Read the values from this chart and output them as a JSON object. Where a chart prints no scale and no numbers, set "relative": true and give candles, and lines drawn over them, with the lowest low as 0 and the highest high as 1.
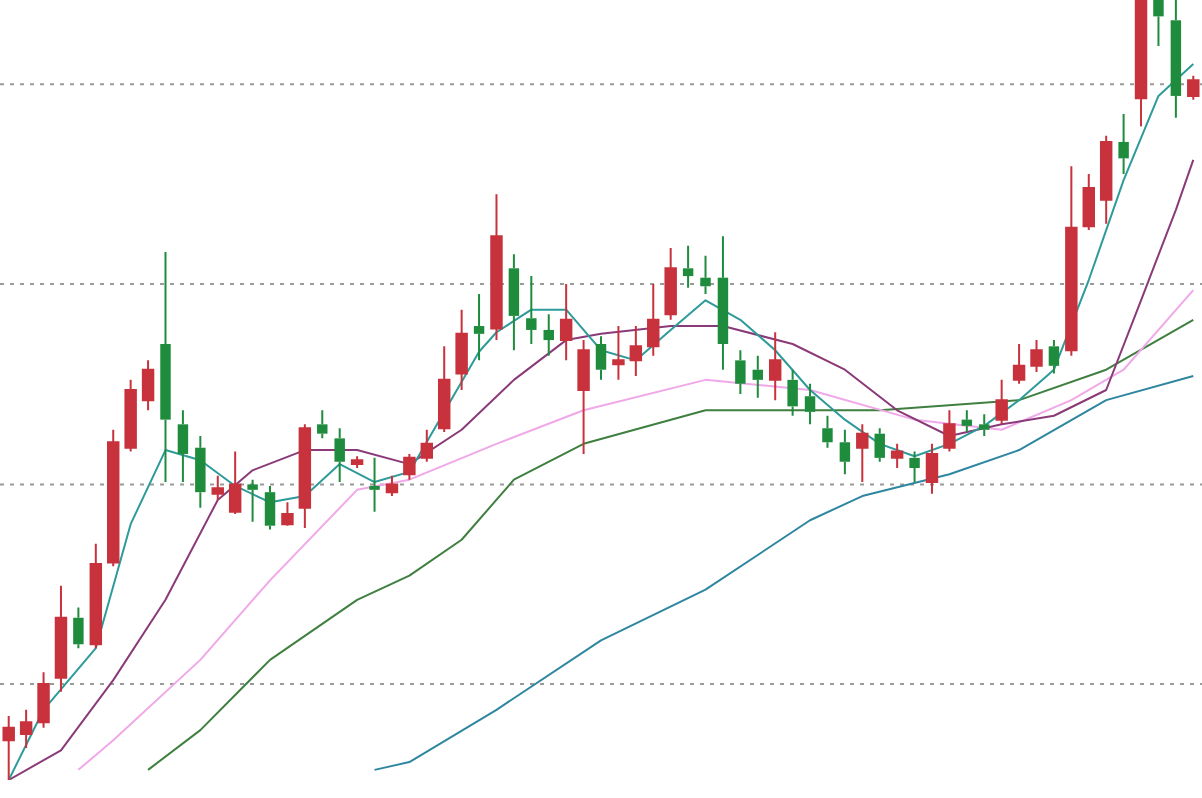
{
  "chart_data": {
    "type": "candlestick",
    "relative": true,
    "ref_lines": [
      {
        "axis": "y",
        "value": 0.123,
        "color": "#9a9a9a",
        "line_style": "dotted"
      },
      {
        "axis": "y",
        "value": 0.379,
        "color": "#9a9a9a",
        "line_style": "dotted"
      },
      {
        "axis": "y",
        "value": 0.636,
        "color": "#9a9a9a",
        "line_style": "dotted"
      },
      {
        "axis": "y",
        "value": 0.892,
        "color": "#9a9a9a",
        "line_style": "dotted"
      }
    ],
    "categories": [
      null,
      null,
      null,
      null,
      null,
      null,
      null,
      null,
      null,
      null,
      null,
      null,
      null,
      null,
      null,
      null,
      null,
      null,
      null,
      null,
      null,
      null,
      null,
      null,
      null,
      null,
      null,
      null,
      null,
      null,
      null,
      null,
      null,
      null,
      null,
      null,
      null,
      null,
      null,
      null,
      null,
      null,
      null,
      null,
      null,
      null,
      null,
      null,
      null,
      null,
      null,
      null,
      null,
      null,
      null,
      null,
      null,
      null,
      null,
      null,
      null,
      null,
      null,
      null,
      null,
      null,
      null,
      null,
      null
    ],
    "ohlc": [
      [
        0.051,
        0.082,
        0,
        0.067
      ],
      [
        0.059,
        0.09,
        0.041,
        0.074
      ],
      [
        0.074,
        0.138,
        0.067,
        0.123
      ],
      [
        0.131,
        0.249,
        0.113,
        0.208
      ],
      [
        0.208,
        0.221,
        0.169,
        0.174
      ],
      [
        0.174,
        0.303,
        0.169,
        0.277
      ],
      [
        0.279,
        0.449,
        0.274,
        0.433
      ],
      [
        0.426,
        0.513,
        0.421,
        0.5
      ],
      [
        0.487,
        0.538,
        0.474,
        0.526
      ],
      [
        0.559,
        0.677,
        0.382,
        0.462
      ],
      [
        0.456,
        0.474,
        0.382,
        0.418
      ],
      [
        0.426,
        0.441,
        0.349,
        0.369
      ],
      [
        0.367,
        0.39,
        0.359,
        0.374
      ],
      [
        0.344,
        0.421,
        0.341,
        0.379
      ],
      [
        0.379,
        0.385,
        0.331,
        0.372
      ],
      [
        0.369,
        0.377,
        0.321,
        0.326
      ],
      [
        0.328,
        0.356,
        0.326,
        0.341
      ],
      [
        0.349,
        0.456,
        0.323,
        0.451
      ],
      [
        0.456,
        0.474,
        0.438,
        0.444
      ],
      [
        0.438,
        0.451,
        0.382,
        0.408
      ],
      [
        0.405,
        0.415,
        0.4,
        0.41
      ],
      [
        0.377,
        0.413,
        0.344,
        0.372
      ],
      [
        0.369,
        0.39,
        0.364,
        0.379
      ],
      [
        0.392,
        0.418,
        0.385,
        0.413
      ],
      [
        0.413,
        0.449,
        0.408,
        0.431
      ],
      [
        0.451,
        0.556,
        0.446,
        0.513
      ],
      [
        0.521,
        0.603,
        0.5,
        0.572
      ],
      [
        0.582,
        0.623,
        0.538,
        0.572
      ],
      [
        0.579,
        0.751,
        0.564,
        0.697
      ],
      [
        0.656,
        0.674,
        0.551,
        0.595
      ],
      [
        0.592,
        0.646,
        0.559,
        0.577
      ],
      [
        0.577,
        0.597,
        0.544,
        0.564
      ],
      [
        0.564,
        0.636,
        0.538,
        0.59
      ],
      [
        0.5,
        0.564,
        0.418,
        0.551
      ],
      [
        0.559,
        0.569,
        0.513,
        0.526
      ],
      [
        0.533,
        0.582,
        0.513,
        0.538
      ],
      [
        0.538,
        0.582,
        0.518,
        0.556
      ],
      [
        0.556,
        0.636,
        0.544,
        0.59
      ],
      [
        0.597,
        0.682,
        0.59,
        0.656
      ],
      [
        0.656,
        0.685,
        0.631,
        0.646
      ],
      [
        0.644,
        0.672,
        0.623,
        0.633
      ],
      [
        0.644,
        0.697,
        0.526,
        0.559
      ],
      [
        0.538,
        0.551,
        0.495,
        0.508
      ],
      [
        0.526,
        0.544,
        0.49,
        0.513
      ],
      [
        0.513,
        0.574,
        0.487,
        0.538
      ],
      [
        0.513,
        0.526,
        0.467,
        0.479
      ],
      [
        0.492,
        0.508,
        0.456,
        0.472
      ],
      [
        0.451,
        0.467,
        0.426,
        0.433
      ],
      [
        0.433,
        0.449,
        0.392,
        0.408
      ],
      [
        0.426,
        0.456,
        0.382,
        0.444
      ],
      [
        0.444,
        0.451,
        0.408,
        0.413
      ],
      [
        0.413,
        0.431,
        0.4,
        0.421
      ],
      [
        0.413,
        0.421,
        0.382,
        0.4
      ],
      [
        0.382,
        0.431,
        0.367,
        0.418
      ],
      [
        0.426,
        0.474,
        0.421,
        0.456
      ],
      [
        0.462,
        0.474,
        0.446,
        0.454
      ],
      [
        0.456,
        0.469,
        0.441,
        0.449
      ],
      [
        0.462,
        0.513,
        0.456,
        0.487
      ],
      [
        0.513,
        0.559,
        0.508,
        0.531
      ],
      [
        0.531,
        0.564,
        0.523,
        0.551
      ],
      [
        0.556,
        0.564,
        0.521,
        0.531
      ],
      [
        0.551,
        0.787,
        0.544,
        0.708
      ],
      [
        0.71,
        0.777,
        0.705,
        0.759
      ],
      [
        0.744,
        0.826,
        0.713,
        0.818
      ],
      [
        0.818,
        0.854,
        0.777,
        0.797
      ],
      [
        0.874,
        1,
        0.838,
        1
      ],
      [
        1,
        1,
        0.941,
        0.979
      ],
      [
        0.974,
        1,
        0.849,
        0.877
      ],
      [
        0.877,
        0.903,
        0.872,
        0.897
      ]
    ],
    "colors": [
      "#c8323c",
      "#c8323c",
      "#c8323c",
      "#c8323c",
      "#1e8c3c",
      "#c8323c",
      "#c8323c",
      "#c8323c",
      "#c8323c",
      "#1e8c3c",
      "#1e8c3c",
      "#1e8c3c",
      "#c8323c",
      "#c8323c",
      "#1e8c3c",
      "#1e8c3c",
      "#c8323c",
      "#c8323c",
      "#1e8c3c",
      "#1e8c3c",
      "#c8323c",
      "#1e8c3c",
      "#c8323c",
      "#c8323c",
      "#c8323c",
      "#c8323c",
      "#c8323c",
      "#1e8c3c",
      "#c8323c",
      "#1e8c3c",
      "#1e8c3c",
      "#1e8c3c",
      "#c8323c",
      "#c8323c",
      "#1e8c3c",
      "#c8323c",
      "#c8323c",
      "#c8323c",
      "#c8323c",
      "#1e8c3c",
      "#1e8c3c",
      "#1e8c3c",
      "#1e8c3c",
      "#1e8c3c",
      "#c8323c",
      "#1e8c3c",
      "#1e8c3c",
      "#1e8c3c",
      "#1e8c3c",
      "#c8323c",
      "#1e8c3c",
      "#c8323c",
      "#1e8c3c",
      "#c8323c",
      "#c8323c",
      "#1e8c3c",
      "#1e8c3c",
      "#c8323c",
      "#c8323c",
      "#c8323c",
      "#1e8c3c",
      "#c8323c",
      "#c8323c",
      "#c8323c",
      "#1e8c3c",
      "#c8323c",
      "#1e8c3c",
      "#1e8c3c",
      "#c8323c"
    ],
    "series": [
      {
        "type": "line",
        "color": "#2e9a9a",
        "values": [
          0,
          null,
          0.09,
          null,
          null,
          0.169,
          null,
          0.328,
          null,
          0.423,
          null,
          0.41,
          null,
          0.377,
          null,
          0.356,
          null,
          0.364,
          null,
          0.405,
          null,
          0.382,
          null,
          0.395,
          null,
          null,
          null,
          0.549,
          0.574,
          null,
          0.603,
          null,
          0.603,
          null,
          0.551,
          null,
          0.538,
          null,
          0.577,
          null,
          0.615,
          null,
          0.59,
          null,
          0.551,
          null,
          0.5,
          null,
          0.462,
          null,
          0.431,
          null,
          0.415,
          null,
          0.431,
          null,
          0.454,
          null,
          0.487,
          null,
          0.526,
          null,
          0.641,
          null,
          0.769,
          null,
          0.877,
          null,
          0.918
        ]
      },
      {
        "type": "line",
        "color": "#8a3a78",
        "values": [
          0,
          null,
          null,
          0.038,
          null,
          null,
          0.128,
          null,
          null,
          0.231,
          null,
          null,
          0.359,
          null,
          0.397,
          null,
          null,
          0.423,
          null,
          null,
          0.423,
          null,
          null,
          0.405,
          null,
          null,
          0.449,
          null,
          null,
          0.513,
          null,
          null,
          0.564,
          null,
          0.572,
          null,
          null,
          null,
          0.582,
          null,
          null,
          0.582,
          null,
          null,
          null,
          0.559,
          null,
          null,
          0.526,
          null,
          null,
          0.474,
          null,
          null,
          0.441,
          null,
          null,
          0.456,
          null,
          null,
          0.467,
          null,
          null,
          0.5,
          null,
          0.615,
          null,
          0.731,
          0.795
        ]
      },
      {
        "type": "line",
        "color": "#f0a8e8",
        "values": [
          null,
          null,
          null,
          null,
          0.013,
          null,
          0.051,
          null,
          null,
          null,
          null,
          0.154,
          null,
          null,
          null,
          0.256,
          null,
          null,
          null,
          null,
          0.372,
          null,
          null,
          0.385,
          null,
          null,
          null,
          null,
          0.431,
          null,
          null,
          null,
          null,
          0.474,
          null,
          null,
          null,
          null,
          null,
          null,
          0.513,
          null,
          null,
          null,
          null,
          null,
          0.5,
          null,
          null,
          null,
          null,
          null,
          0.462,
          null,
          null,
          null,
          null,
          0.449,
          null,
          null,
          null,
          0.487,
          null,
          null,
          0.526,
          null,
          0.577,
          null,
          0.628
        ]
      },
      {
        "type": "line",
        "color": "#3f7f3f",
        "values": [
          null,
          null,
          null,
          null,
          null,
          null,
          null,
          null,
          0.013,
          null,
          null,
          0.064,
          null,
          null,
          null,
          0.154,
          null,
          null,
          null,
          null,
          0.231,
          null,
          null,
          0.262,
          null,
          null,
          0.308,
          null,
          null,
          0.385,
          null,
          null,
          null,
          0.431,
          null,
          null,
          null,
          null,
          null,
          null,
          0.474,
          null,
          null,
          null,
          null,
          null,
          null,
          null,
          null,
          null,
          0.474,
          null,
          null,
          null,
          null,
          null,
          null,
          null,
          0.487,
          null,
          null,
          null,
          null,
          0.526,
          null,
          null,
          null,
          null,
          0.59
        ]
      },
      {
        "type": "line",
        "color": "#2f86a0",
        "values": [
          null,
          null,
          null,
          null,
          null,
          null,
          null,
          null,
          null,
          null,
          null,
          null,
          null,
          null,
          null,
          null,
          null,
          null,
          null,
          null,
          null,
          0.013,
          null,
          0.023,
          null,
          null,
          null,
          null,
          0.09,
          null,
          null,
          null,
          null,
          null,
          0.179,
          null,
          null,
          null,
          null,
          null,
          0.244,
          null,
          null,
          null,
          null,
          null,
          0.333,
          null,
          null,
          0.364,
          null,
          null,
          null,
          null,
          0.392,
          null,
          null,
          null,
          0.423,
          null,
          null,
          null,
          null,
          0.487,
          null,
          null,
          null,
          null,
          0.518
        ]
      }
    ]
  }
}
